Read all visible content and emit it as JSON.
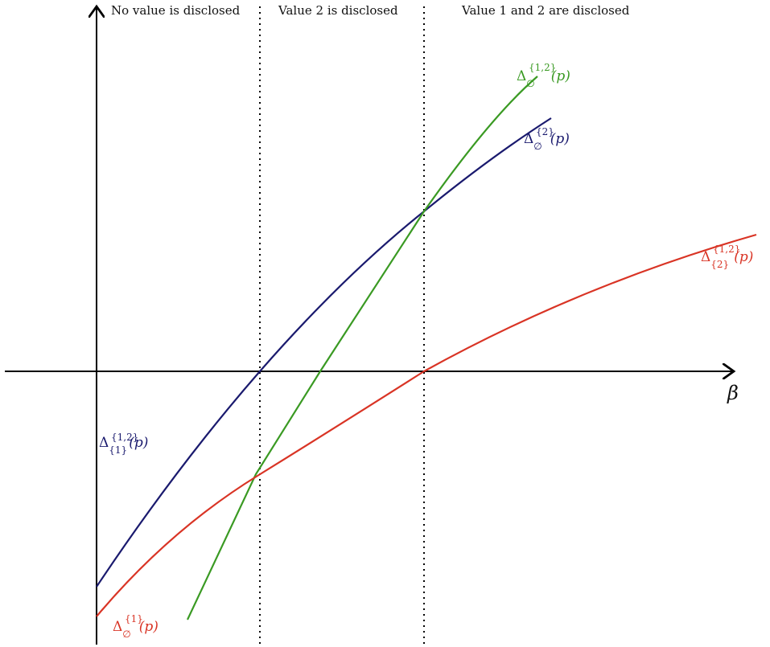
{
  "axis": {
    "x_label": "β"
  },
  "regions": [
    {
      "label": "No value is disclosed"
    },
    {
      "label": "Value 2 is disclosed"
    },
    {
      "label": "Value 1 and 2 are disclosed"
    }
  ],
  "colors": {
    "navy": "#1a1a6e",
    "green": "#3a9a23",
    "red": "#d93425",
    "axis": "#000000"
  },
  "curves": [
    {
      "name": "Δ_{1}^{1,2}(p)",
      "delta": "Δ",
      "sup": "{1,2}",
      "sub": "{1}",
      "arg": "(p)",
      "color": "#1a1a6e"
    },
    {
      "name": "Δ_∅^{2}(p)",
      "delta": "Δ",
      "sup": "{2}",
      "sub": "∅",
      "arg": "(p)",
      "color": "#1a1a6e"
    },
    {
      "name": "Δ_∅^{1,2}(p)",
      "delta": "Δ",
      "sup": "{1,2}",
      "sub": "∅",
      "arg": "(p)",
      "color": "#3a9a23"
    },
    {
      "name": "Δ_{2}^{1,2}(p)",
      "delta": "Δ",
      "sup": "{1,2}",
      "sub": "{2}",
      "arg": "(p)",
      "color": "#d93425"
    },
    {
      "name": "Δ_∅^{1}(p)",
      "delta": "Δ",
      "sup": "{1}",
      "sub": "∅",
      "arg": "(p)",
      "color": "#d93425"
    }
  ]
}
